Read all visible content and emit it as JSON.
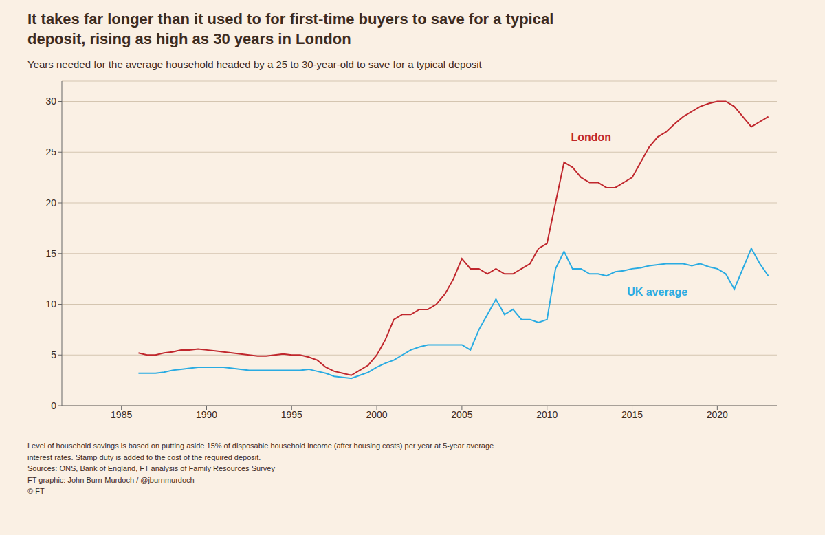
{
  "chart_data": {
    "type": "line",
    "title": "It takes far longer than it used to for first-time buyers to save for a typical\ndeposit, rising as high as 30 years in London",
    "subtitle": "Years needed for the average household headed by a 25 to 30-year-old to save for a typical deposit",
    "footnotes": [
      "Level of household savings is based on putting aside 15% of disposable household income (after housing costs) per year at 5-year average",
      "interest rates. Stamp duty is added to the cost of the required deposit.",
      "Sources: ONS, Bank of England, FT analysis of Family Resources Survey",
      "FT graphic: John Burn-Murdoch / @jburnmurdoch",
      "© FT"
    ],
    "x": [
      1986,
      1986.5,
      1987,
      1987.5,
      1988,
      1988.5,
      1989,
      1989.5,
      1990,
      1990.5,
      1991,
      1991.5,
      1992,
      1992.5,
      1993,
      1993.5,
      1994,
      1994.5,
      1995,
      1995.5,
      1996,
      1996.5,
      1997,
      1997.5,
      1998,
      1998.5,
      1999,
      1999.5,
      2000,
      2000.5,
      2001,
      2001.5,
      2002,
      2002.5,
      2003,
      2003.5,
      2004,
      2004.5,
      2005,
      2005.5,
      2006,
      2006.5,
      2007,
      2007.5,
      2008,
      2008.5,
      2009,
      2009.5,
      2010,
      2010.5,
      2011,
      2011.5,
      2012,
      2012.5,
      2013,
      2013.5,
      2014,
      2014.5,
      2015,
      2015.5,
      2016,
      2016.5,
      2017,
      2017.5,
      2018,
      2018.5,
      2019,
      2019.5,
      2020,
      2020.5,
      2021,
      2021.5,
      2022,
      2022.5,
      2023
    ],
    "series": [
      {
        "name": "London",
        "color": "#c0272d",
        "values": [
          5.2,
          5.0,
          5.0,
          5.2,
          5.3,
          5.5,
          5.5,
          5.6,
          5.5,
          5.4,
          5.3,
          5.2,
          5.1,
          5.0,
          4.9,
          4.9,
          5.0,
          5.1,
          5.0,
          5.0,
          4.8,
          4.5,
          3.8,
          3.4,
          3.2,
          3.0,
          3.5,
          4.0,
          5.0,
          6.5,
          8.5,
          9.0,
          9.0,
          9.5,
          9.5,
          10.0,
          11.0,
          12.5,
          14.5,
          13.5,
          13.5,
          13.0,
          13.5,
          13.0,
          13.0,
          13.5,
          14.0,
          15.5,
          16.0,
          20.0,
          24.0,
          23.5,
          22.5,
          22.0,
          22.0,
          21.5,
          21.5,
          22.0,
          22.5,
          24.0,
          25.5,
          26.5,
          27.0,
          27.8,
          28.5,
          29.0,
          29.5,
          29.8,
          30.0,
          30.0,
          29.5,
          28.5,
          27.5,
          28.0,
          28.5
        ]
      },
      {
        "name": "UK average",
        "color": "#29abe2",
        "values": [
          3.2,
          3.2,
          3.2,
          3.3,
          3.5,
          3.6,
          3.7,
          3.8,
          3.8,
          3.8,
          3.8,
          3.7,
          3.6,
          3.5,
          3.5,
          3.5,
          3.5,
          3.5,
          3.5,
          3.5,
          3.6,
          3.4,
          3.2,
          2.9,
          2.8,
          2.7,
          3.0,
          3.3,
          3.8,
          4.2,
          4.5,
          5.0,
          5.5,
          5.8,
          6.0,
          6.0,
          6.0,
          6.0,
          6.0,
          5.5,
          7.5,
          9.0,
          10.5,
          9.0,
          9.5,
          8.5,
          8.5,
          8.2,
          8.5,
          13.5,
          15.2,
          13.5,
          13.5,
          13.0,
          13.0,
          12.8,
          13.2,
          13.3,
          13.5,
          13.6,
          13.8,
          13.9,
          14.0,
          14.0,
          14.0,
          13.8,
          14.0,
          13.7,
          13.5,
          13.0,
          11.5,
          13.5,
          15.5,
          14.0,
          12.8
        ]
      }
    ],
    "annotations": [
      {
        "text": "London",
        "x": 2011.2,
        "y": 26.5,
        "color": "#c0272d"
      },
      {
        "text": "UK average",
        "x": 2014.5,
        "y": 11.2,
        "color": "#29abe2"
      }
    ],
    "xlim": [
      1981.5,
      2023.5
    ],
    "xticks": [
      1985,
      1990,
      1995,
      2000,
      2005,
      2010,
      2015,
      2020
    ],
    "ylim": [
      0,
      32
    ],
    "yticks": [
      0,
      5,
      10,
      15,
      20,
      25,
      30
    ],
    "grid": "y"
  }
}
